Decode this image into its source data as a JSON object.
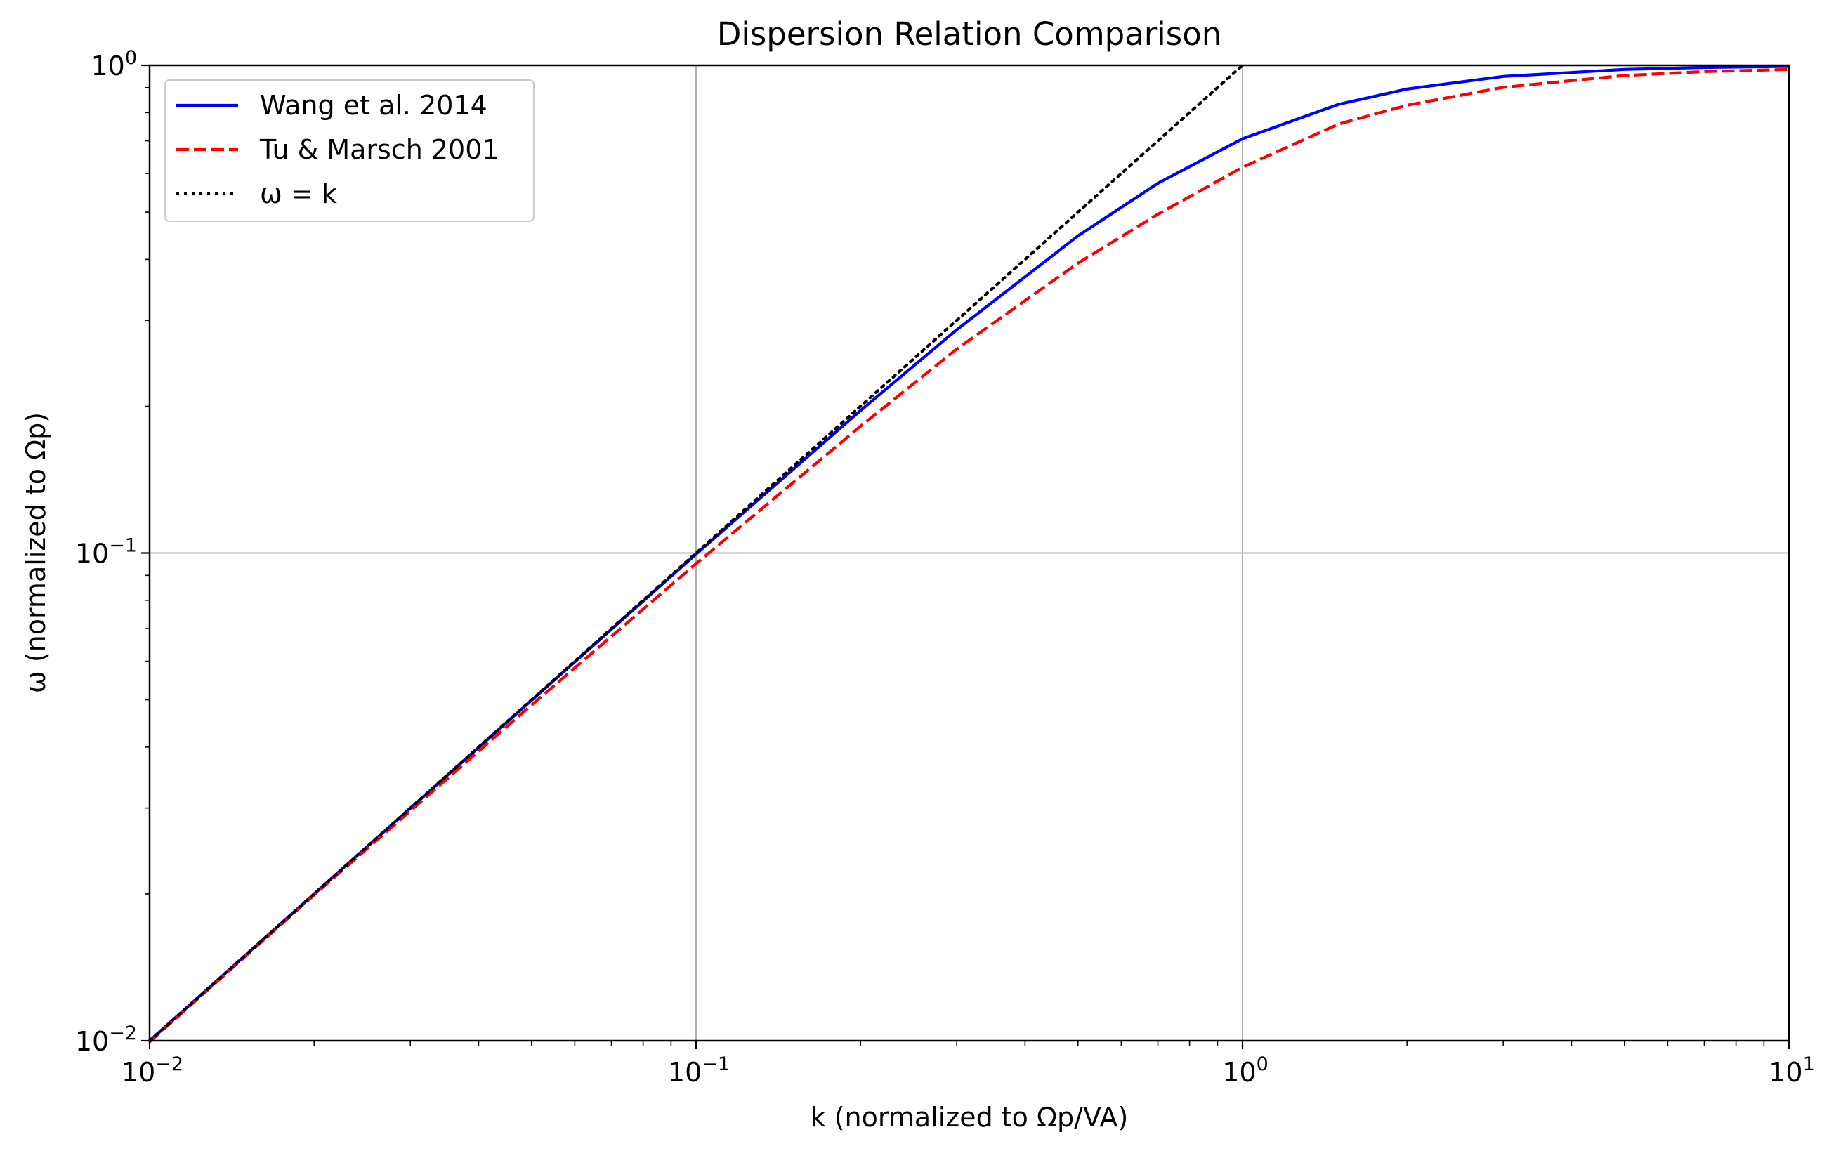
{
  "chart_data": {
    "type": "line",
    "title": "Dispersion Relation Comparison",
    "xlabel": "k (normalized to Ωp/VA)",
    "ylabel": "ω (normalized to Ωp)",
    "xscale": "log",
    "yscale": "log",
    "xlim": [
      0.01,
      10
    ],
    "ylim": [
      0.01,
      1
    ],
    "grid": true,
    "legend_position": "top-left",
    "x_ticks": [
      {
        "value": 0.01,
        "base": "10",
        "exp": "−2"
      },
      {
        "value": 0.1,
        "base": "10",
        "exp": "−1"
      },
      {
        "value": 1,
        "base": "10",
        "exp": "0"
      },
      {
        "value": 10,
        "base": "10",
        "exp": "1"
      }
    ],
    "y_ticks": [
      {
        "value": 0.01,
        "base": "10",
        "exp": "−2"
      },
      {
        "value": 0.1,
        "base": "10",
        "exp": "−1"
      },
      {
        "value": 1,
        "base": "10",
        "exp": "0"
      }
    ],
    "series": [
      {
        "name": "Wang et al. 2014",
        "color": "#0000ff",
        "style": "solid",
        "x": [
          0.01,
          0.02,
          0.05,
          0.1,
          0.2,
          0.3,
          0.5,
          0.7,
          1,
          1.5,
          2,
          3,
          5,
          7,
          10
        ],
        "y": [
          0.01,
          0.02,
          0.0499,
          0.0995,
          0.196,
          0.287,
          0.447,
          0.573,
          0.707,
          0.832,
          0.894,
          0.949,
          0.981,
          0.99,
          0.995
        ]
      },
      {
        "name": "Tu & Marsch 2001",
        "color": "#ff0000",
        "style": "dashed",
        "x": [
          0.01,
          0.02,
          0.05,
          0.1,
          0.2,
          0.3,
          0.5,
          0.7,
          1,
          1.5,
          2,
          3,
          5,
          7,
          10
        ],
        "y": [
          0.00995,
          0.0199,
          0.0488,
          0.0951,
          0.182,
          0.262,
          0.393,
          0.495,
          0.618,
          0.758,
          0.828,
          0.901,
          0.953,
          0.971,
          0.981
        ]
      },
      {
        "name": "ω = k",
        "color": "#000000",
        "style": "dotted",
        "x": [
          0.01,
          1
        ],
        "y": [
          0.01,
          1
        ]
      }
    ]
  }
}
